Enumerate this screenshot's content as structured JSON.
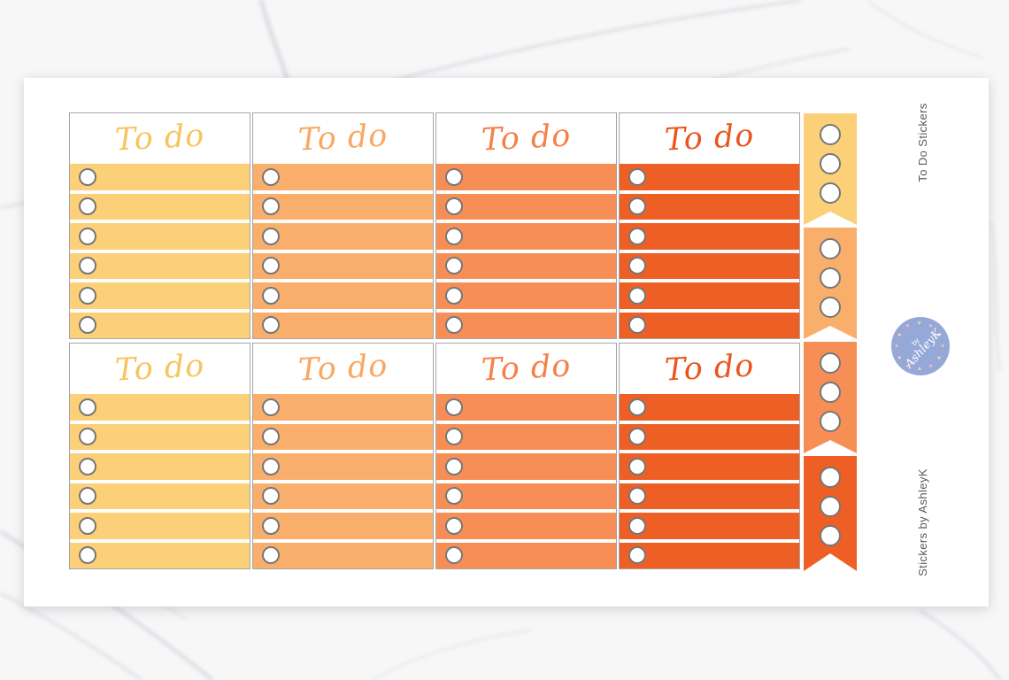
{
  "product": {
    "side_label_top": "To Do Stickers",
    "side_label_bottom": "Stickers by AshleyK"
  },
  "sheet": {
    "sticker_script_text": "To do",
    "grid": {
      "rows": 2,
      "columns": 4,
      "bars_per_sticker": 6
    },
    "columns": [
      {
        "name": "yellow",
        "bar_color": "#FBD078",
        "script_color": "#F8C45F"
      },
      {
        "name": "light-orange",
        "bar_color": "#F9AF6B",
        "script_color": "#F8A861"
      },
      {
        "name": "orange",
        "bar_color": "#F78E56",
        "script_color": "#F58148"
      },
      {
        "name": "dark-orange",
        "bar_color": "#EE5F26",
        "script_color": "#E9561D"
      }
    ],
    "banner": {
      "segments": 4,
      "circles_per_segment": 3
    }
  },
  "badge": {
    "prefix": "by",
    "name": "AshleyK",
    "bg_color": "#96A8D8",
    "heart_colors": [
      "#F2BCBC",
      "#F3D9A0"
    ]
  }
}
